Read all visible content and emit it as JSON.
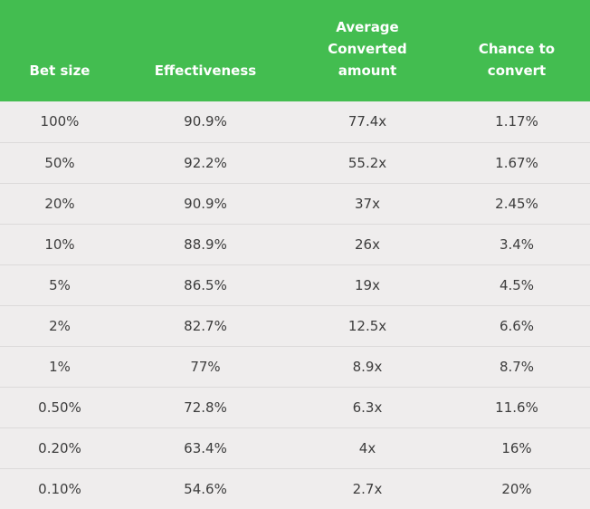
{
  "table": {
    "headers": [
      "Bet size",
      "Effectiveness",
      "Average Converted amount",
      "Chance to convert"
    ],
    "rows": [
      [
        "100%",
        "90.9%",
        "77.4x",
        "1.17%"
      ],
      [
        "50%",
        "92.2%",
        "55.2x",
        "1.67%"
      ],
      [
        "20%",
        "90.9%",
        "37x",
        "2.45%"
      ],
      [
        "10%",
        "88.9%",
        "26x",
        "3.4%"
      ],
      [
        "5%",
        "86.5%",
        "19x",
        "4.5%"
      ],
      [
        "2%",
        "82.7%",
        "12.5x",
        "6.6%"
      ],
      [
        "1%",
        "77%",
        "8.9x",
        "8.7%"
      ],
      [
        "0.50%",
        "72.8%",
        "6.3x",
        "11.6%"
      ],
      [
        "0.20%",
        "63.4%",
        "4x",
        "16%"
      ],
      [
        "0.10%",
        "54.6%",
        "2.7x",
        "20%"
      ]
    ]
  },
  "colors": {
    "header_bg": "#43bd50",
    "header_text": "#ffffff",
    "body_bg": "#efeded",
    "body_text": "#3d3d3d",
    "row_divider": "#dcdada"
  }
}
